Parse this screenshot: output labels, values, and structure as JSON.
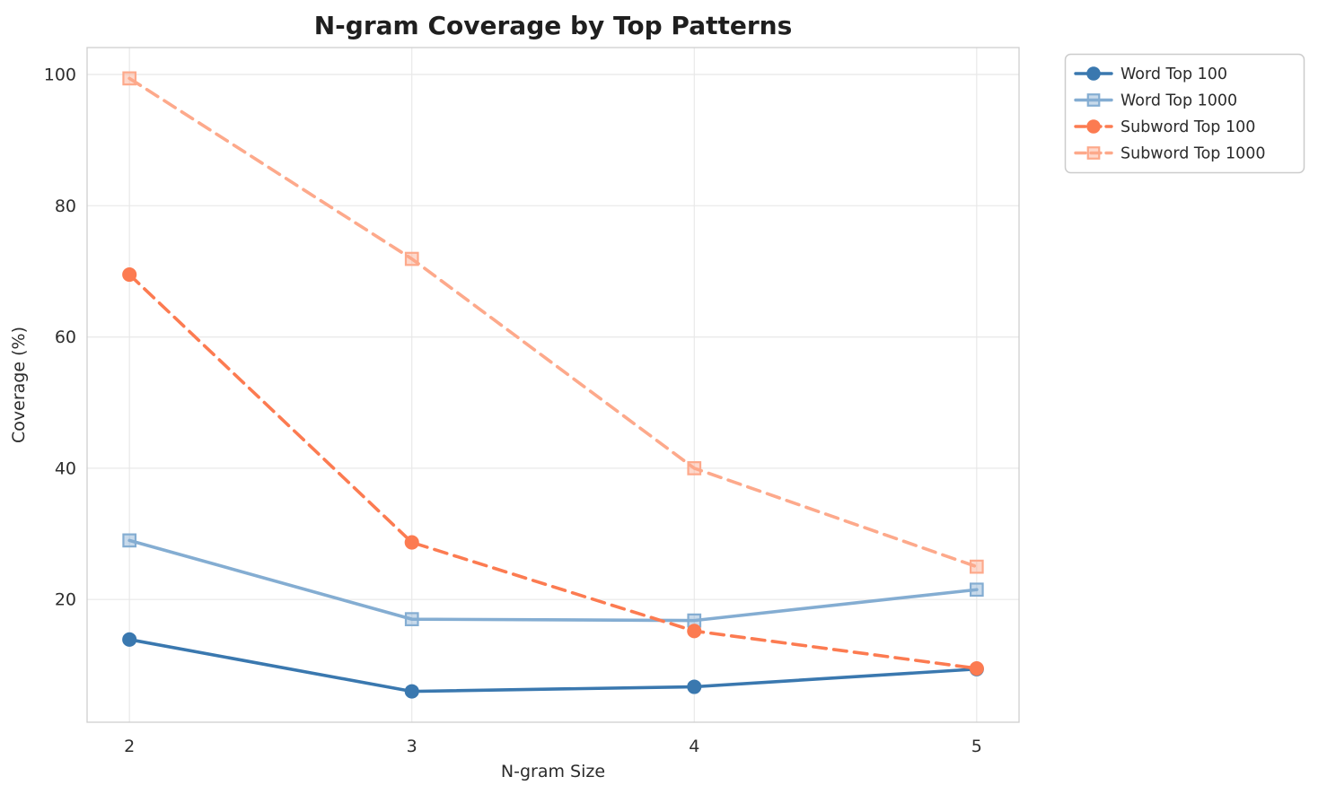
{
  "chart_data": {
    "type": "line",
    "title": "N-gram Coverage by Top Patterns",
    "xlabel": "N-gram Size",
    "ylabel": "Coverage (%)",
    "x": [
      2,
      3,
      4,
      5
    ],
    "xticks": [
      "2",
      "3",
      "4",
      "5"
    ],
    "yticks": [
      20,
      40,
      60,
      80,
      100
    ],
    "xlim": [
      1.85,
      5.15
    ],
    "ylim": [
      1.3,
      104.1
    ],
    "grid": true,
    "legend_position": "outside-upper-right",
    "series": [
      {
        "name": "Word Top 100",
        "values": [
          13.9,
          6.0,
          6.7,
          9.4
        ],
        "color": "#3a78af",
        "dash": "solid",
        "marker": "circle"
      },
      {
        "name": "Word Top 1000",
        "values": [
          29.0,
          17.0,
          16.8,
          21.5
        ],
        "color": "#84add2",
        "dash": "solid",
        "marker": "square"
      },
      {
        "name": "Subword Top 100",
        "values": [
          69.5,
          28.7,
          15.2,
          9.5
        ],
        "color": "#fc7b51",
        "dash": "dashed",
        "marker": "circle"
      },
      {
        "name": "Subword Top 1000",
        "values": [
          99.4,
          71.9,
          40.0,
          25.0
        ],
        "color": "#fda98b",
        "dash": "dashed",
        "marker": "square"
      }
    ],
    "colors": {
      "grid": "#e8e8e8",
      "spine": "#cfcfcf",
      "background": "#ffffff",
      "legend_border": "#cccccc"
    }
  }
}
